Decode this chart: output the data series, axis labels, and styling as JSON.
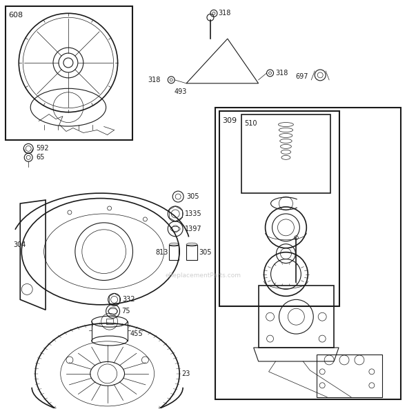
{
  "bg_color": "#ffffff",
  "fig_width": 5.9,
  "fig_height": 5.93,
  "watermark": "eReplacementParts.com",
  "black": "#1a1a1a",
  "gray": "#888888"
}
